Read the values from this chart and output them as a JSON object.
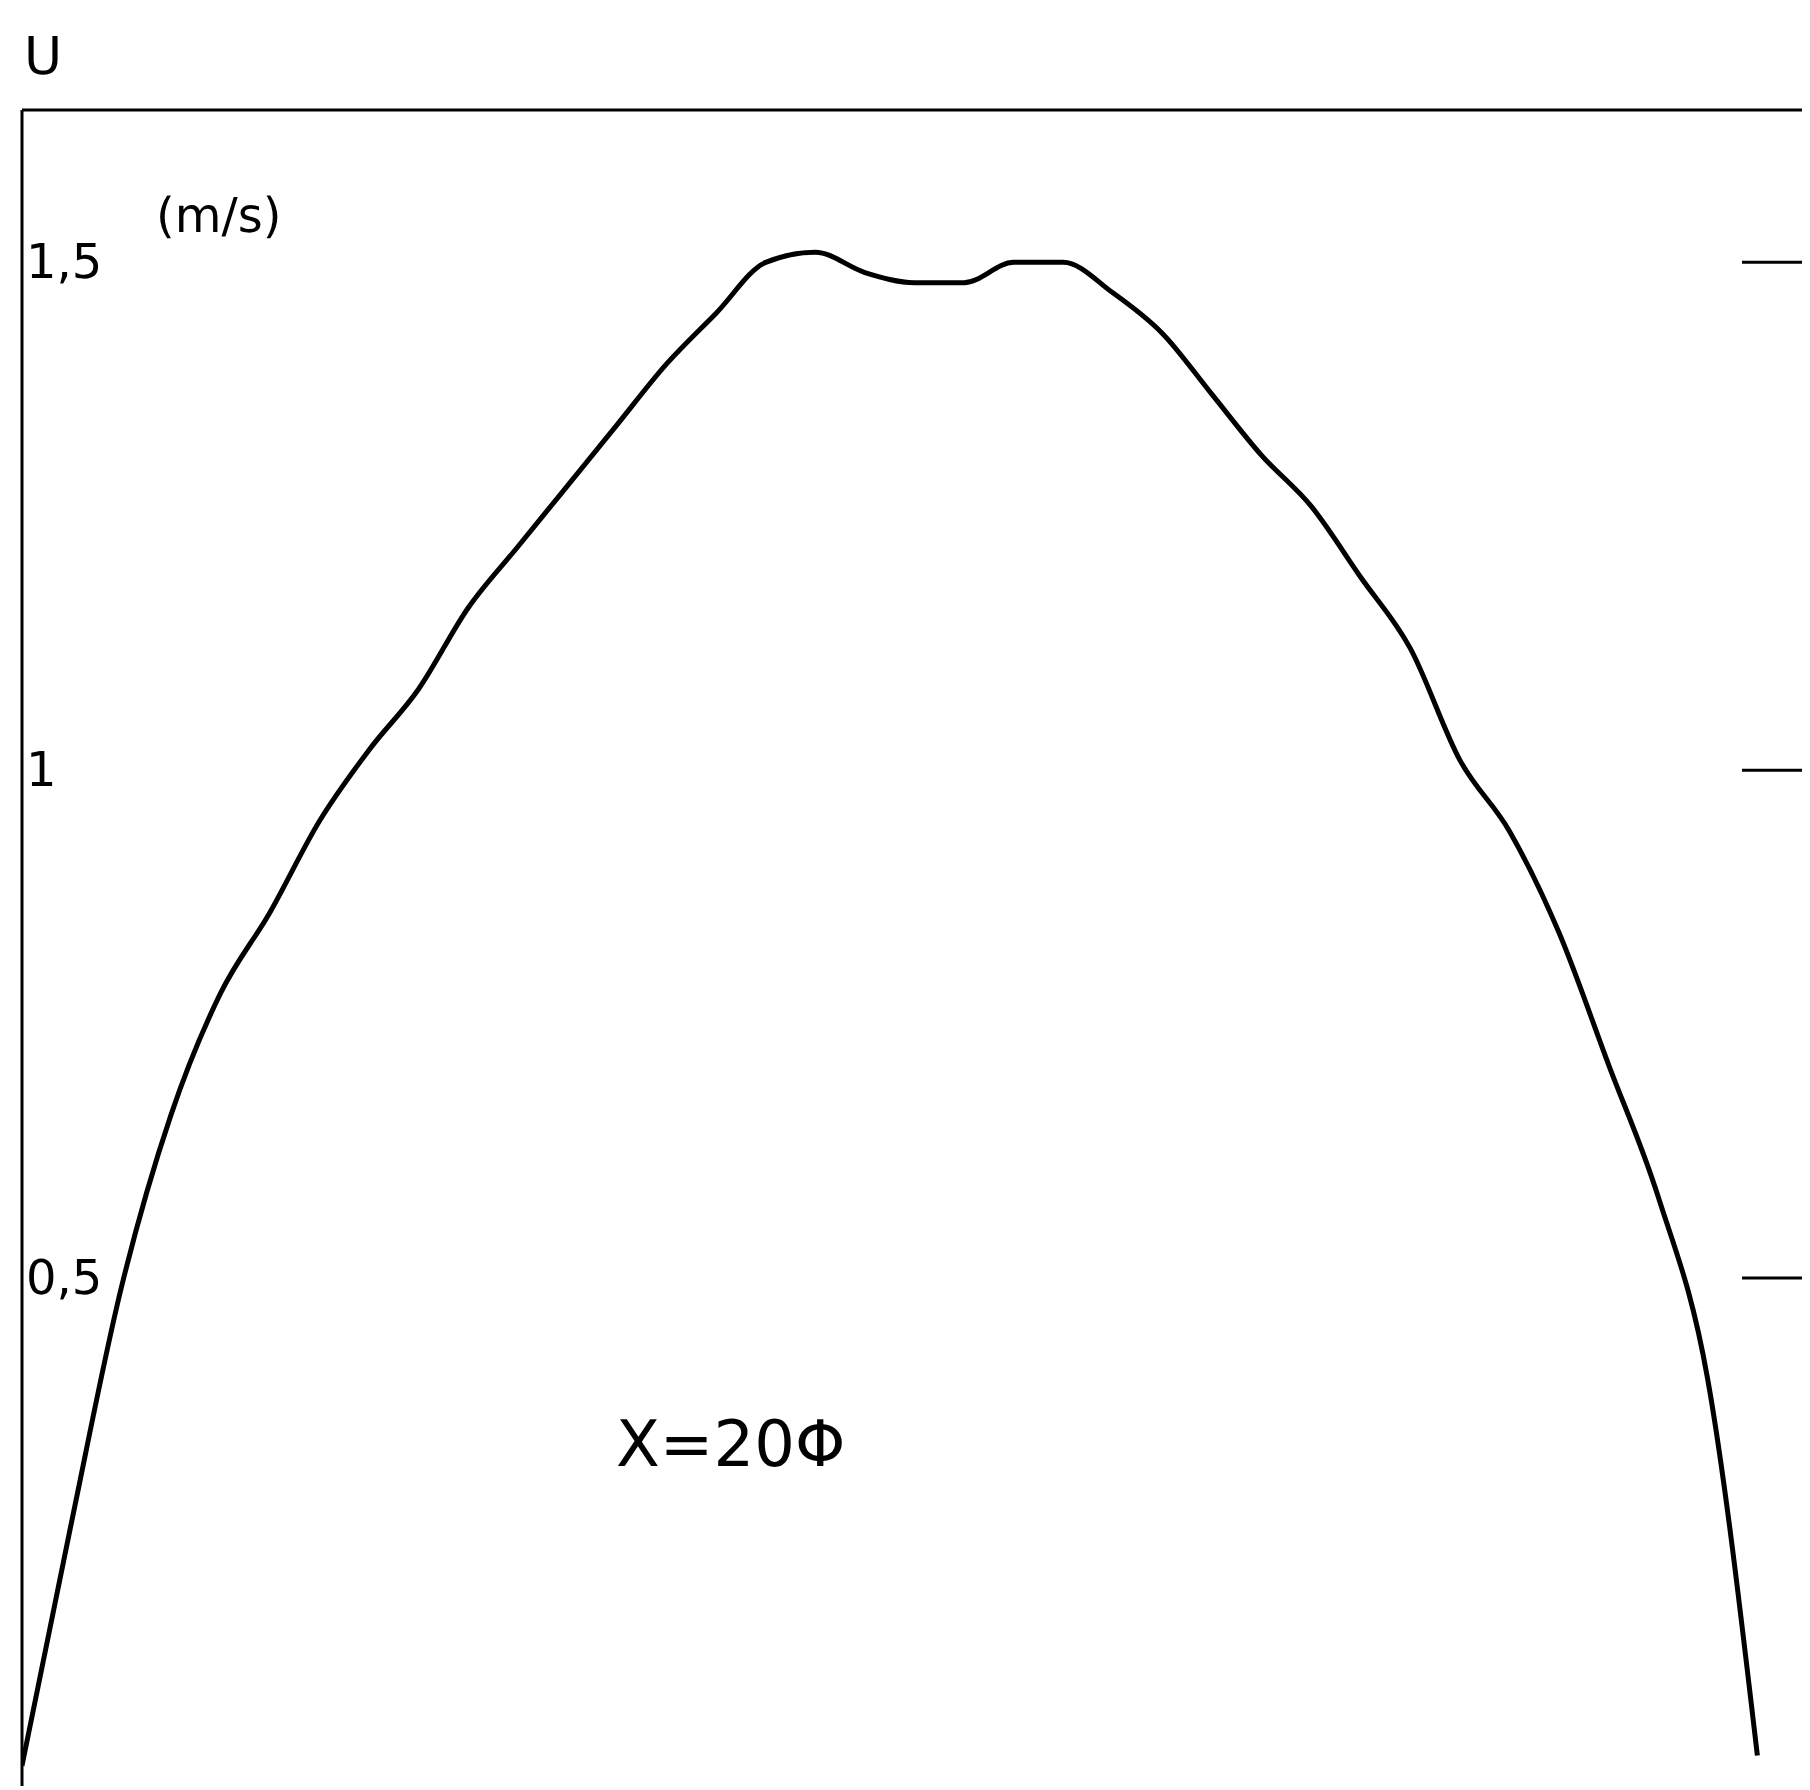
{
  "chart_data": {
    "type": "line",
    "ylabel": "U",
    "categories": [
      null,
      null,
      null,
      null,
      null,
      null,
      null,
      null,
      null,
      null,
      null,
      null,
      null,
      null,
      null,
      null,
      null,
      null,
      null,
      null,
      null,
      null,
      null,
      null,
      null,
      null,
      null,
      null,
      null,
      null,
      null,
      null,
      null,
      null,
      null,
      null
    ],
    "series": [
      {
        "color": "#000000",
        "values": [
          0.02,
          0.26,
          0.49,
          0.66,
          0.78,
          0.86,
          0.95,
          1.02,
          1.08,
          1.16,
          1.22,
          1.28,
          1.34,
          1.4,
          1.45,
          1.5,
          1.51,
          1.49,
          1.48,
          1.48,
          1.5,
          1.5,
          1.47,
          1.43,
          1.37,
          1.31,
          1.26,
          1.19,
          1.12,
          1.01,
          0.94,
          0.84,
          0.71,
          0.58,
          0.4,
          0.03
        ]
      }
    ],
    "ylim": [
      0,
      1.65
    ],
    "yticks": [
      {
        "value": 0.5,
        "label": "0,5"
      },
      {
        "value": 1,
        "label": "1"
      },
      {
        "value": 1.5,
        "label": "1,5"
      }
    ],
    "annotations": [
      "(m/s)",
      "X=20Φ"
    ],
    "grid": false,
    "legend": false,
    "marker": "none",
    "line_style": "solid"
  }
}
